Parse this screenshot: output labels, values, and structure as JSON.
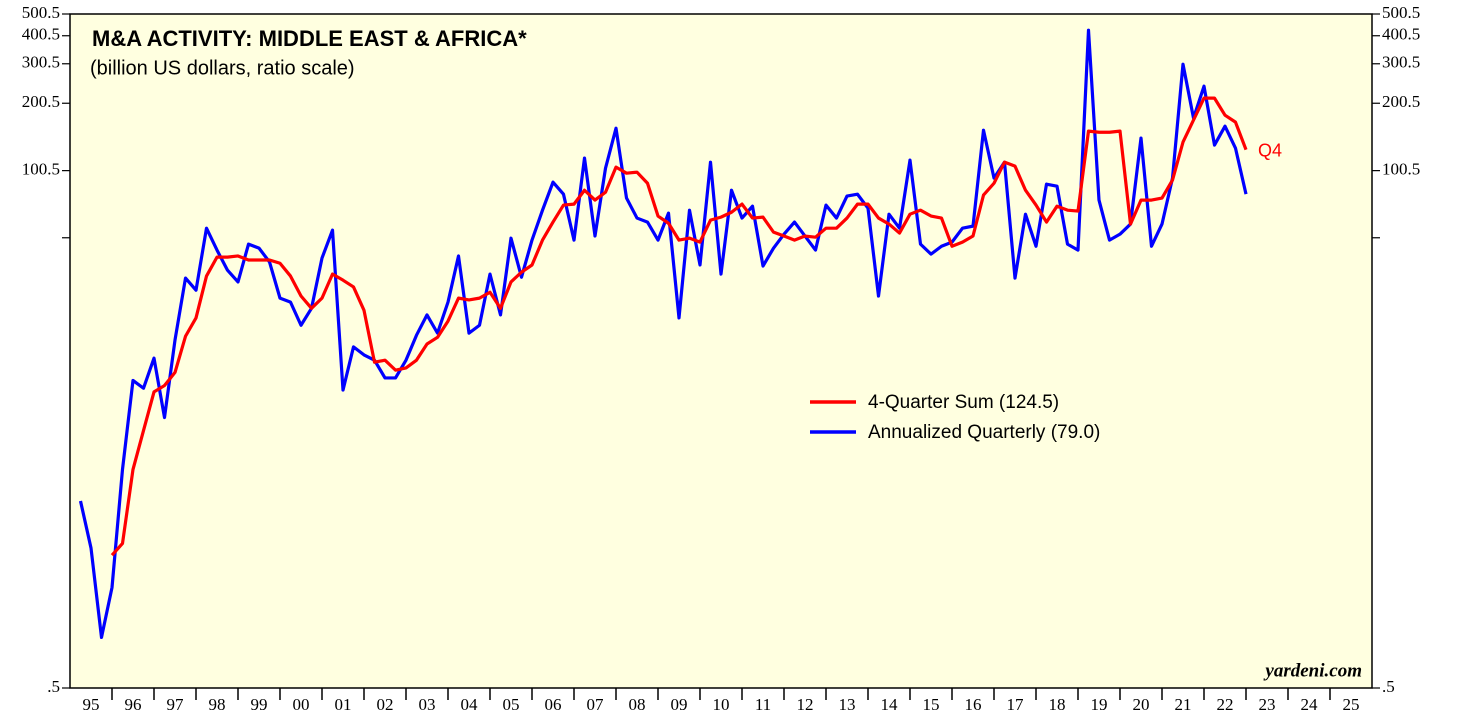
{
  "chart_data": {
    "type": "line",
    "title": "M&A ACTIVITY: MIDDLE EAST & AFRICA*",
    "subtitle": "(billion US dollars, ratio scale)",
    "source": "yardeni.com",
    "annotation": "Q4",
    "log_scale": true,
    "legend_position": "center-right",
    "background": "#ffffe0",
    "xlim": [
      1995,
      2026
    ],
    "xtick_marks": [
      1996,
      1997,
      1998,
      1999,
      2000,
      2001,
      2002,
      2003,
      2004,
      2005,
      2006,
      2007,
      2008,
      2009,
      2010,
      2011,
      2012,
      2013,
      2014,
      2015,
      2016,
      2017,
      2018,
      2019,
      2020,
      2021,
      2022,
      2023,
      2024,
      2025
    ],
    "xticks": [
      {
        "value": 1995.5,
        "label": "95"
      },
      {
        "value": 1996.5,
        "label": "96"
      },
      {
        "value": 1997.5,
        "label": "97"
      },
      {
        "value": 1998.5,
        "label": "98"
      },
      {
        "value": 1999.5,
        "label": "99"
      },
      {
        "value": 2000.5,
        "label": "00"
      },
      {
        "value": 2001.5,
        "label": "01"
      },
      {
        "value": 2002.5,
        "label": "02"
      },
      {
        "value": 2003.5,
        "label": "03"
      },
      {
        "value": 2004.5,
        "label": "04"
      },
      {
        "value": 2005.5,
        "label": "05"
      },
      {
        "value": 2006.5,
        "label": "06"
      },
      {
        "value": 2007.5,
        "label": "07"
      },
      {
        "value": 2008.5,
        "label": "08"
      },
      {
        "value": 2009.5,
        "label": "09"
      },
      {
        "value": 2010.5,
        "label": "10"
      },
      {
        "value": 2011.5,
        "label": "11"
      },
      {
        "value": 2012.5,
        "label": "12"
      },
      {
        "value": 2013.5,
        "label": "13"
      },
      {
        "value": 2014.5,
        "label": "14"
      },
      {
        "value": 2015.5,
        "label": "15"
      },
      {
        "value": 2016.5,
        "label": "16"
      },
      {
        "value": 2017.5,
        "label": "17"
      },
      {
        "value": 2018.5,
        "label": "18"
      },
      {
        "value": 2019.5,
        "label": "19"
      },
      {
        "value": 2020.5,
        "label": "20"
      },
      {
        "value": 2021.5,
        "label": "21"
      },
      {
        "value": 2022.5,
        "label": "22"
      },
      {
        "value": 2023.5,
        "label": "23"
      },
      {
        "value": 2024.5,
        "label": "24"
      },
      {
        "value": 2025.5,
        "label": "25"
      }
    ],
    "ylim": [
      0.5,
      500.5
    ],
    "yticks": [
      {
        "value": 0.5,
        "label": ".5"
      },
      100.5,
      200.5,
      300.5,
      400.5,
      500.5
    ],
    "minor_yticks": [
      50.5
    ],
    "x": [
      1995.25,
      1995.5,
      1995.75,
      1996,
      1996.25,
      1996.5,
      1996.75,
      1997,
      1997.25,
      1997.5,
      1997.75,
      1998,
      1998.25,
      1998.5,
      1998.75,
      1999,
      1999.25,
      1999.5,
      1999.75,
      2000,
      2000.25,
      2000.5,
      2000.75,
      2001,
      2001.25,
      2001.5,
      2001.75,
      2002,
      2002.25,
      2002.5,
      2002.75,
      2003,
      2003.25,
      2003.5,
      2003.75,
      2004,
      2004.25,
      2004.5,
      2004.75,
      2005,
      2005.25,
      2005.5,
      2005.75,
      2006,
      2006.25,
      2006.5,
      2006.75,
      2007,
      2007.25,
      2007.5,
      2007.75,
      2008,
      2008.25,
      2008.5,
      2008.75,
      2009,
      2009.25,
      2009.5,
      2009.75,
      2010,
      2010.25,
      2010.5,
      2010.75,
      2011,
      2011.25,
      2011.5,
      2011.75,
      2012,
      2012.25,
      2012.5,
      2012.75,
      2013,
      2013.25,
      2013.5,
      2013.75,
      2014,
      2014.25,
      2014.5,
      2014.75,
      2015,
      2015.25,
      2015.5,
      2015.75,
      2016,
      2016.25,
      2016.5,
      2016.75,
      2017,
      2017.25,
      2017.5,
      2017.75,
      2018,
      2018.25,
      2018.5,
      2018.75,
      2019,
      2019.25,
      2019.5,
      2019.75,
      2020,
      2020.25,
      2020.5,
      2020.75,
      2021,
      2021.25,
      2021.5,
      2021.75,
      2022,
      2022.25,
      2022.5,
      2022.75,
      2023
    ],
    "series": [
      {
        "name": "4-Quarter Sum (124.5)",
        "color": "#ff0000",
        "values": [
          null,
          null,
          null,
          1.95,
          2.2,
          4.7,
          7.0,
          10.4,
          11.1,
          12.7,
          18.4,
          22.2,
          34.1,
          41.4,
          41.4,
          41.9,
          40.2,
          40.2,
          40.2,
          38.9,
          34.1,
          27.8,
          24.5,
          27.2,
          34.8,
          32.7,
          30.5,
          24.0,
          14.1,
          14.4,
          13.0,
          13.3,
          14.4,
          17.0,
          18.2,
          21.5,
          27.2,
          26.7,
          27.2,
          28.9,
          24.5,
          32.1,
          35.5,
          38.2,
          49.3,
          59.3,
          70.6,
          71.3,
          82.2,
          74.3,
          80.5,
          104.2,
          97.9,
          98.9,
          88.3,
          63.1,
          58.6,
          49.3,
          50.3,
          48.3,
          60.5,
          62.4,
          65.6,
          71.3,
          61.8,
          62.4,
          53.5,
          51.4,
          49.3,
          51.4,
          50.8,
          55.7,
          55.7,
          61.8,
          71.3,
          71.3,
          61.8,
          58.1,
          53.0,
          64.3,
          67.0,
          63.1,
          61.8,
          46.3,
          48.3,
          51.4,
          78.2,
          88.3,
          109.6,
          105.2,
          82.2,
          70.6,
          59.3,
          69.8,
          67.0,
          66.4,
          150.7,
          148.9,
          148.9,
          150.7,
          58.1,
          74.3,
          74.3,
          75.9,
          91.2,
          134.6,
          168.7,
          211.3,
          211.3,
          177.4,
          165.2,
          124.5
        ]
      },
      {
        "name": "Annualized Quarterly (79.0)",
        "color": "#0000ff",
        "values": [
          3.4,
          2.1,
          0.84,
          1.4,
          4.7,
          11.7,
          10.8,
          14.7,
          8.0,
          17.7,
          33.4,
          29.5,
          55.7,
          44.5,
          36.2,
          32.1,
          47.3,
          45.4,
          39.4,
          27.2,
          26.1,
          20.6,
          24.5,
          41.0,
          54.6,
          10.6,
          16.5,
          15.2,
          14.4,
          12.0,
          12.0,
          14.4,
          18.6,
          22.9,
          19.0,
          26.1,
          41.9,
          19.0,
          20.6,
          34.8,
          22.9,
          50.3,
          33.7,
          49.3,
          67.0,
          89.3,
          78.9,
          49.3,
          114.3,
          51.4,
          103.0,
          155.2,
          75.9,
          61.8,
          59.3,
          49.3,
          65.0,
          22.2,
          67.0,
          38.2,
          109.6,
          34.8,
          82.2,
          61.8,
          69.8,
          37.8,
          45.4,
          52.4,
          59.3,
          51.4,
          44.5,
          70.6,
          61.8,
          77.4,
          78.9,
          68.4,
          27.8,
          64.3,
          55.7,
          111.9,
          47.3,
          42.7,
          46.3,
          48.3,
          55.7,
          56.9,
          152.1,
          93.1,
          109.6,
          33.4,
          64.3,
          46.3,
          87.5,
          85.7,
          47.3,
          44.5,
          423.6,
          74.3,
          49.3,
          52.4,
          58.1,
          140.3,
          46.3,
          58.1,
          93.1,
          299.2,
          172.2,
          238.8,
          130.6,
          158.5,
          126.5,
          79.0
        ]
      }
    ]
  }
}
